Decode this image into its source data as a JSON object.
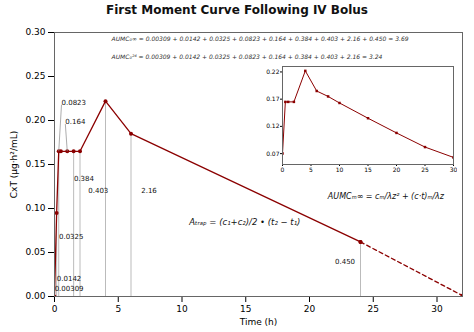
{
  "chart_data": [
    {
      "type": "line",
      "title": "First Moment Curve Following IV Bolus",
      "xlabel": "Time (h)",
      "ylabel": "CxT (μg·h²/mL)",
      "xlim": [
        0,
        32
      ],
      "ylim": [
        0,
        0.3
      ],
      "xticks": [
        0,
        5,
        10,
        15,
        20,
        25,
        30
      ],
      "yticks": [
        {
          "value": 0,
          "label": "0.00"
        },
        0.05,
        {
          "value": 0.1,
          "label": "0.10"
        },
        0.15,
        {
          "value": 0.2,
          "label": "0.20"
        },
        0.25,
        {
          "value": 0.3,
          "label": "0.30"
        }
      ],
      "series": [
        {
          "color": "#8b0000",
          "line_style": "solid",
          "marker": "circle",
          "x": [
            0,
            0.167,
            0.333,
            0.5,
            1.0,
            1.5,
            2.0,
            4.0,
            6.0,
            24.0
          ],
          "values": [
            0.0,
            0.095,
            0.165,
            0.165,
            0.165,
            0.165,
            0.165,
            0.222,
            0.185,
            0.062
          ]
        },
        {
          "color": "#8b0000",
          "line_style": "dashed",
          "marker": "circle",
          "x": [
            24.0,
            32.0
          ],
          "values": [
            0.062,
            0.001
          ]
        }
      ],
      "vlines": {
        "color": "#aaaaaa",
        "x": [
          0.167,
          0.333,
          1.5,
          2.0,
          4.0,
          6.0,
          24.0
        ],
        "y0": [
          0.0,
          0.0,
          0.0,
          0.0,
          0.0,
          0.0,
          0.0
        ],
        "y1": [
          0.095,
          0.165,
          0.165,
          0.165,
          0.222,
          0.185,
          0.062
        ]
      },
      "annotations": [
        {
          "text": "0.00309",
          "x": 0.01,
          "y": 0.006
        },
        {
          "text": "0.0142",
          "x": 0.18,
          "y": 0.018
        },
        {
          "text": "0.0325",
          "x": 0.35,
          "y": 0.065
        },
        {
          "text": "0.0823",
          "x": 0.55,
          "y": 0.218,
          "arrow_to": [
            0.333,
            0.165
          ]
        },
        {
          "text": "0.164",
          "x": 0.85,
          "y": 0.196,
          "arrow_to": [
            1.0,
            0.165
          ]
        },
        {
          "text": "0.384",
          "x": 1.52,
          "y": 0.131
        },
        {
          "text": "0.403",
          "x": 2.65,
          "y": 0.118
        },
        {
          "text": "2.16",
          "x": 6.8,
          "y": 0.118
        },
        {
          "text": "0.450",
          "x": 22.0,
          "y": 0.037
        }
      ],
      "formulas": [
        "AUMC₀∞ = 0.00309 + 0.0142 + 0.0325 + 0.0823 + 0.164 + 0.384 + 0.403 + 2.16 + 0.450 = 3.69",
        "AUMC₀²⁴ = 0.00309 + 0.0142 + 0.0325 + 0.0823 + 0.164 + 0.384 + 0.403 + 2.16 = 3.24",
        "Aₜᵣₐₚ = (c₁+c₂)/2 • (t₂ − t₁)",
        "AUMCₘ∞ = cₘ/λz² + (c·t)ₘ/λz"
      ]
    },
    {
      "type": "line",
      "xlim": [
        0,
        30
      ],
      "ylim": [
        0.05,
        0.23
      ],
      "xticks": [
        0,
        5,
        10,
        15,
        20,
        25,
        30
      ],
      "yticks": [
        0.07,
        0.12,
        0.17,
        0.22
      ],
      "color": "#8b0000",
      "marker": "square",
      "x": [
        0,
        0.5,
        1.0,
        2.0,
        4.0,
        6.0,
        8.0,
        10.0,
        15.0,
        20.0,
        25.0,
        30.0
      ],
      "values": [
        0.07,
        0.165,
        0.165,
        0.165,
        0.222,
        0.185,
        0.175,
        0.163,
        0.135,
        0.108,
        0.082,
        0.063
      ]
    }
  ]
}
